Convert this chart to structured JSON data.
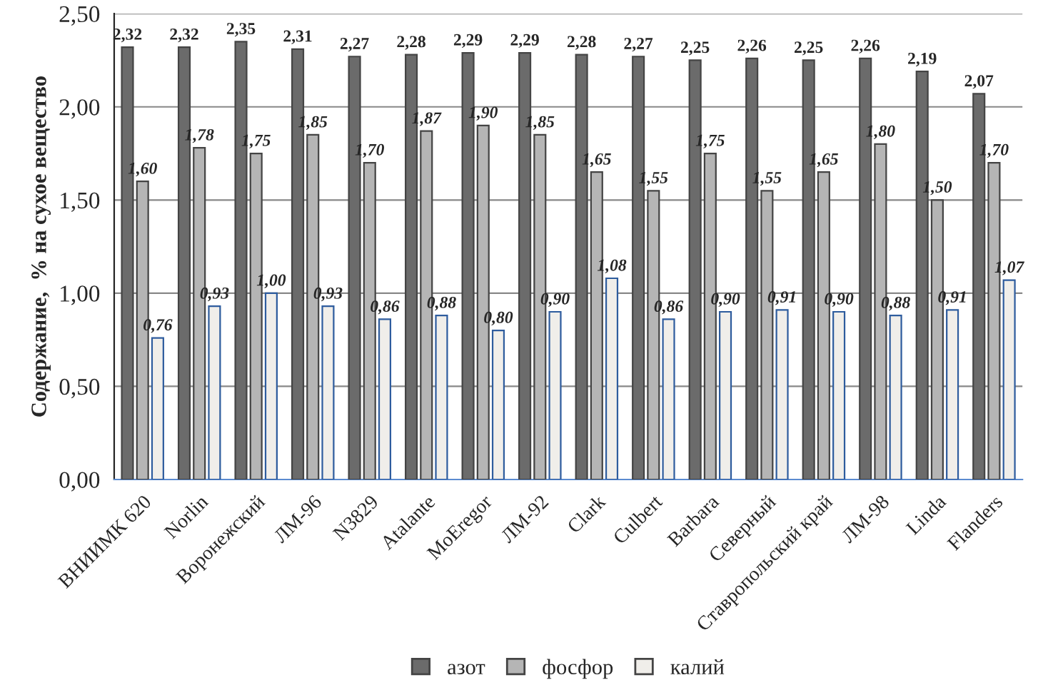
{
  "chart_data": {
    "type": "bar",
    "ylabel": "Содержание,  % на сухое вещество",
    "categories": [
      "ВНИИМК 620",
      "Norlin",
      "Воронежский",
      "ЛМ-96",
      "N3829",
      "Atalante",
      "MoEregor",
      "ЛМ-92",
      "Clark",
      "Culbert",
      "Barbara",
      "Северный",
      "Ставропольский край",
      "ЛМ-98",
      "Linda",
      "Flanders"
    ],
    "series": [
      {
        "name": "азот",
        "color": "#6b6b6b",
        "values": [
          2.32,
          2.32,
          2.35,
          2.31,
          2.27,
          2.28,
          2.29,
          2.29,
          2.28,
          2.27,
          2.25,
          2.26,
          2.25,
          2.26,
          2.19,
          2.07
        ],
        "value_labels": [
          "2,32",
          "2,32",
          "2,35",
          "2,31",
          "2,27",
          "2,28",
          "2,29",
          "2,29",
          "2,28",
          "2,27",
          "2,25",
          "2,26",
          "2,25",
          "2,26",
          "2,19",
          "2,07"
        ]
      },
      {
        "name": "фосфор",
        "color": "#b5b5b5",
        "values": [
          1.6,
          1.78,
          1.75,
          1.85,
          1.7,
          1.87,
          1.9,
          1.85,
          1.65,
          1.55,
          1.75,
          1.55,
          1.65,
          1.8,
          1.5,
          1.7
        ],
        "value_labels": [
          "1,60",
          "1,78",
          "1,75",
          "1,85",
          "1,70",
          "1,87",
          "1,90",
          "1,85",
          "1,65",
          "1,55",
          "1,75",
          "1,55",
          "1,65",
          "1,80",
          "1,50",
          "1,70"
        ]
      },
      {
        "name": "калий",
        "color": "#f0eeea",
        "values": [
          0.76,
          0.93,
          1.0,
          0.93,
          0.86,
          0.88,
          0.8,
          0.9,
          1.08,
          0.86,
          0.9,
          0.91,
          0.9,
          0.88,
          0.91,
          1.07
        ],
        "value_labels": [
          "0,76",
          "0,93",
          "1,00",
          "0,93",
          "0,86",
          "0,88",
          "0,80",
          "0,90",
          "1,08",
          "0,86",
          "0,90",
          "0,91",
          "0,90",
          "0,88",
          "0,91",
          "1,07"
        ]
      }
    ],
    "ylim": [
      0,
      2.5
    ],
    "yticks": [
      {
        "value": 0,
        "label": "0,00"
      },
      {
        "value": 0.5,
        "label": "0,50"
      },
      {
        "value": 1.0,
        "label": "1,00"
      },
      {
        "value": 1.5,
        "label": "1,50"
      },
      {
        "value": 2.0,
        "label": "2,00"
      },
      {
        "value": 2.5,
        "label": "2,50"
      }
    ],
    "grid": "y",
    "legend": "bottom"
  }
}
